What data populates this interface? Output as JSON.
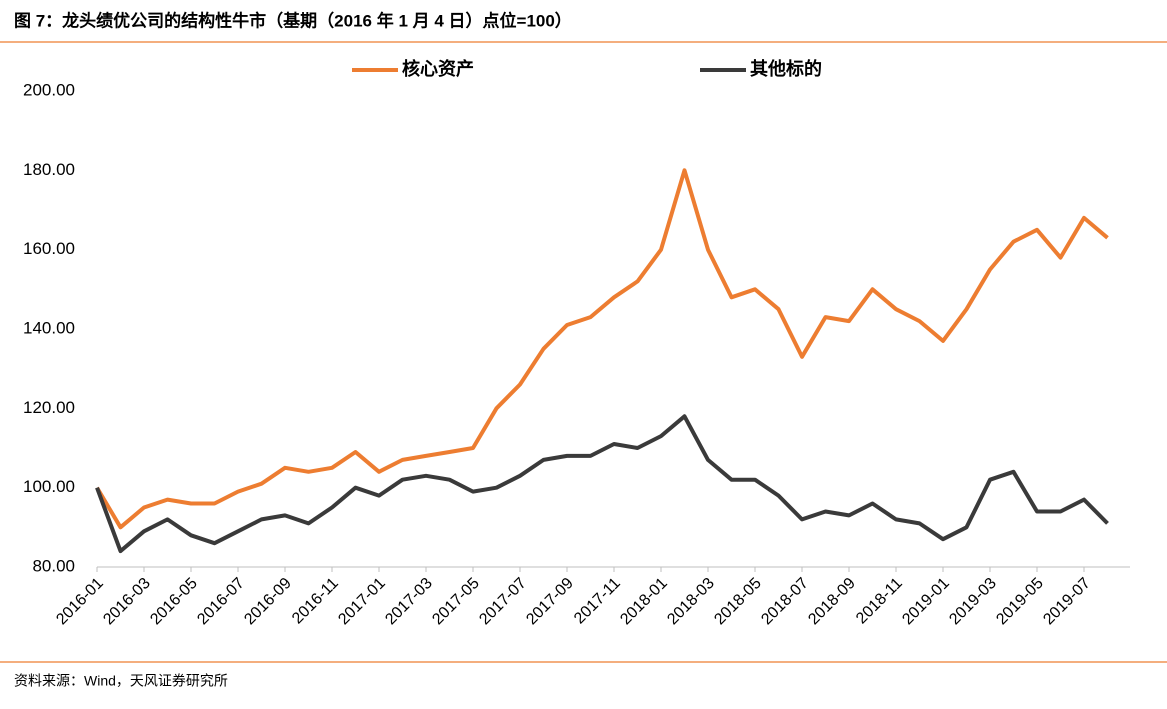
{
  "chart_data": {
    "type": "line",
    "title": "图 7：龙头绩优公司的结构性牛市（基期（2016 年 1 月 4 日）点位=100）",
    "source": "资料来源：Wind，天风证券研究所",
    "x": [
      "2016-01",
      "2016-02",
      "2016-03",
      "2016-04",
      "2016-05",
      "2016-06",
      "2016-07",
      "2016-08",
      "2016-09",
      "2016-10",
      "2016-11",
      "2016-12",
      "2017-01",
      "2017-02",
      "2017-03",
      "2017-04",
      "2017-05",
      "2017-06",
      "2017-07",
      "2017-08",
      "2017-09",
      "2017-10",
      "2017-11",
      "2017-12",
      "2018-01",
      "2018-02",
      "2018-03",
      "2018-04",
      "2018-05",
      "2018-06",
      "2018-07",
      "2018-08",
      "2018-09",
      "2018-10",
      "2018-11",
      "2018-12",
      "2019-01",
      "2019-02",
      "2019-03",
      "2019-04",
      "2019-05",
      "2019-06",
      "2019-07",
      "2019-08"
    ],
    "xticks": [
      "2016-01",
      "2016-03",
      "2016-05",
      "2016-07",
      "2016-09",
      "2016-11",
      "2017-01",
      "2017-03",
      "2017-05",
      "2017-07",
      "2017-09",
      "2017-11",
      "2018-01",
      "2018-03",
      "2018-05",
      "2018-07",
      "2018-09",
      "2018-11",
      "2019-01",
      "2019-03",
      "2019-05",
      "2019-07"
    ],
    "series": [
      {
        "name": "核心资产",
        "color": "#ed7d31",
        "values": [
          100,
          90,
          95,
          97,
          96,
          96,
          99,
          101,
          105,
          104,
          105,
          109,
          104,
          107,
          108,
          109,
          110,
          120,
          126,
          135,
          141,
          143,
          148,
          152,
          160,
          180,
          160,
          148,
          150,
          145,
          133,
          143,
          142,
          150,
          145,
          142,
          137,
          145,
          155,
          162,
          165,
          158,
          168,
          163
        ]
      },
      {
        "name": "其他标的",
        "color": "#3a3a3a",
        "values": [
          100,
          84,
          89,
          92,
          88,
          86,
          89,
          92,
          93,
          91,
          95,
          100,
          98,
          102,
          103,
          102,
          99,
          100,
          103,
          107,
          108,
          108,
          111,
          110,
          113,
          118,
          107,
          102,
          102,
          98,
          92,
          94,
          93,
          96,
          92,
          91,
          87,
          90,
          102,
          104,
          94,
          94,
          97,
          91
        ]
      }
    ],
    "ylim": [
      80,
      200
    ],
    "yticks": [
      {
        "value": 80,
        "label": "80.00"
      },
      {
        "value": 100,
        "label": "100.00"
      },
      {
        "value": 120,
        "label": "120.00"
      },
      {
        "value": 140,
        "label": "140.00"
      },
      {
        "value": 160,
        "label": "160.00"
      },
      {
        "value": 180,
        "label": "180.00"
      },
      {
        "value": 200,
        "label": "200.00"
      }
    ],
    "grid": false,
    "legend": "top"
  }
}
